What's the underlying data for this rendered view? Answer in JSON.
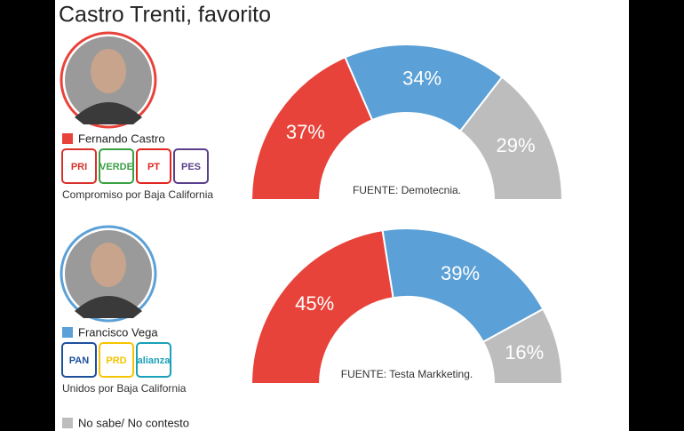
{
  "title": "Castro Trenti, favorito",
  "candidates": [
    {
      "name": "Fernando Castro",
      "color": "#e8433a",
      "coalition": "Compromiso por Baja California",
      "parties": [
        {
          "name": "PRI",
          "color": "#d8322c"
        },
        {
          "name": "VERDE",
          "color": "#3aa142"
        },
        {
          "name": "PT",
          "color": "#e0261f"
        },
        {
          "name": "PES",
          "color": "#5b3f8c"
        }
      ]
    },
    {
      "name": "Francisco Vega",
      "color": "#5ba0d6",
      "coalition": "Unidos por Baja California",
      "parties": [
        {
          "name": "PAN",
          "color": "#1e4f9c"
        },
        {
          "name": "PRD",
          "color": "#f5c400"
        },
        {
          "name": "alianza",
          "color": "#1aa0b8"
        }
      ]
    }
  ],
  "chart_data": [
    {
      "type": "pie",
      "values": [
        37,
        34,
        29
      ],
      "value_labels": [
        "37%",
        "34%",
        "29%"
      ],
      "colors": [
        "#e8433a",
        "#5ba0d6",
        "#bdbdbd"
      ],
      "source": "FUENTE: Demotecnia."
    },
    {
      "type": "pie",
      "values": [
        45,
        39,
        16
      ],
      "value_labels": [
        "45%",
        "39%",
        "16%"
      ],
      "colors": [
        "#e8433a",
        "#5ba0d6",
        "#bdbdbd"
      ],
      "source": "FUENTE: Testa Markketing."
    }
  ],
  "legend": {
    "label": "No sabe/ No contesto",
    "color": "#bdbdbd"
  }
}
